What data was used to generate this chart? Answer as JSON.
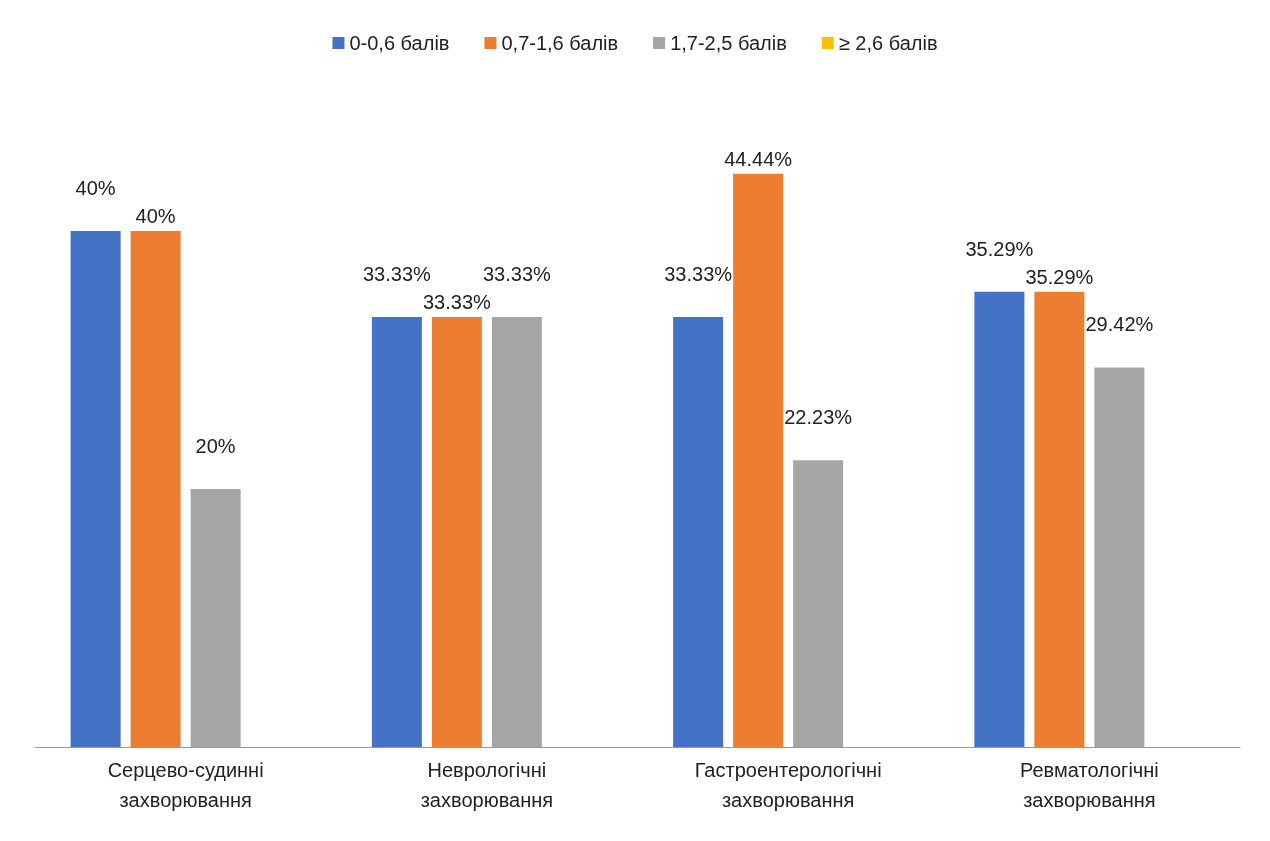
{
  "chart_data": {
    "type": "bar",
    "categories": [
      "Серцево-судинні захворювання",
      "Неврологічні захворювання",
      "Гастроентерологічні захворювання",
      "Ревматологічні захворювання"
    ],
    "series": [
      {
        "name": "0-0,6 балів",
        "color": "#4472c4",
        "values": [
          40,
          33.33,
          33.33,
          35.29
        ],
        "value_labels": [
          "40%",
          "33.33%",
          "33.33%",
          "35.29%"
        ]
      },
      {
        "name": "0,7-1,6 балів",
        "color": "#ed7d31",
        "values": [
          40,
          33.33,
          44.44,
          35.29
        ],
        "value_labels": [
          "40%",
          "33.33%",
          "44.44%",
          "35.29%"
        ]
      },
      {
        "name": "1,7-2,5 балів",
        "color": "#a5a5a5",
        "values": [
          20,
          33.33,
          22.23,
          29.42
        ],
        "value_labels": [
          "20%",
          "33.33%",
          "22.23%",
          "29.42%"
        ]
      },
      {
        "name": "≥ 2,6 балів",
        "color": "#ffc000",
        "values": [
          null,
          null,
          null,
          null
        ]
      }
    ],
    "legend": "top",
    "tick_labels": "x"
  }
}
